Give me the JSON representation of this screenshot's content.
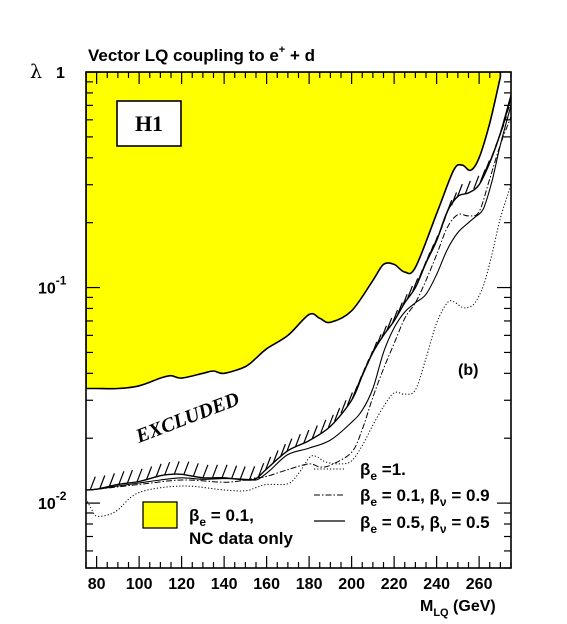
{
  "chart_data": {
    "type": "line",
    "title_text": "Vector LQ coupling to e",
    "title_sup": "+",
    "title_tail": " + d",
    "ylabel": "λ",
    "xlabel_main": "M",
    "xlabel_sub": "LQ",
    "xlabel_unit": " (GeV)",
    "panel_label": "H1",
    "subfig_label": "(b)",
    "region_label": "EXCLUDED",
    "x_ticks": [
      "80",
      "100",
      "120",
      "140",
      "160",
      "180",
      "200",
      "220",
      "240",
      "260"
    ],
    "x_tick_values": [
      80,
      100,
      120,
      140,
      160,
      180,
      200,
      220,
      240,
      260
    ],
    "y_tick_labels": [
      {
        "value": 1,
        "base": "1",
        "exp": ""
      },
      {
        "value": 0.1,
        "base": "10",
        "exp": "-1"
      },
      {
        "value": 0.01,
        "base": "10",
        "exp": "-2"
      }
    ],
    "xlim": [
      75,
      275
    ],
    "ylim": [
      0.005,
      1
    ],
    "y_scale": "log",
    "series": [
      {
        "name_pre": "β",
        "name_sub": "e",
        "name_post": " = 0.1,",
        "name_line2": "NC data only",
        "style": "filled",
        "color": "#ffff00",
        "x": [
          75,
          80,
          90,
          100,
          110,
          115,
          120,
          130,
          135,
          140,
          150,
          155,
          160,
          170,
          180,
          185,
          190,
          200,
          210,
          215,
          220,
          225,
          230,
          240,
          248,
          252,
          256,
          260,
          265,
          270
        ],
        "y": [
          0.034,
          0.034,
          0.034,
          0.035,
          0.038,
          0.039,
          0.038,
          0.04,
          0.041,
          0.04,
          0.043,
          0.047,
          0.052,
          0.06,
          0.075,
          0.072,
          0.069,
          0.078,
          0.108,
          0.128,
          0.128,
          0.118,
          0.124,
          0.22,
          0.35,
          0.37,
          0.35,
          0.4,
          0.58,
          0.95
        ]
      },
      {
        "name_pre": "β",
        "name_sub": "e",
        "name_post": " =1.",
        "style": "dotted",
        "color": "#000000",
        "x": [
          75,
          78,
          80,
          85,
          90,
          100,
          120,
          140,
          150,
          155,
          160,
          170,
          175,
          180,
          183,
          188,
          195,
          200,
          205,
          210,
          215,
          220,
          225,
          230,
          235,
          240,
          245,
          248,
          252,
          255,
          258,
          262,
          266,
          270,
          275
        ],
        "y": [
          0.0105,
          0.0092,
          0.0087,
          0.0088,
          0.0093,
          0.0112,
          0.012,
          0.0115,
          0.0114,
          0.0118,
          0.0122,
          0.0123,
          0.0137,
          0.0162,
          0.0165,
          0.0155,
          0.0152,
          0.0157,
          0.0185,
          0.023,
          0.028,
          0.0325,
          0.032,
          0.0335,
          0.047,
          0.0685,
          0.085,
          0.086,
          0.081,
          0.081,
          0.085,
          0.102,
          0.142,
          0.21,
          0.3
        ]
      },
      {
        "name_pre": "β",
        "name_sub": "e",
        "name_post": " = 0.1, ",
        "name_pre2": "β",
        "name_sub2": "ν",
        "name_post2": " = 0.9",
        "style": "dashdot",
        "color": "#000000",
        "x": [
          75,
          80,
          100,
          120,
          140,
          150,
          155,
          160,
          170,
          180,
          185,
          190,
          200,
          205,
          210,
          215,
          220,
          225,
          230,
          235,
          240,
          245,
          250,
          255,
          260,
          265,
          270,
          275
        ],
        "y": [
          0.0115,
          0.0116,
          0.0122,
          0.0128,
          0.0125,
          0.0128,
          0.0131,
          0.0133,
          0.0143,
          0.0152,
          0.0147,
          0.015,
          0.0172,
          0.022,
          0.031,
          0.042,
          0.055,
          0.072,
          0.085,
          0.108,
          0.142,
          0.19,
          0.218,
          0.215,
          0.225,
          0.32,
          0.46,
          0.62
        ]
      },
      {
        "name_pre": "β",
        "name_sub": "e",
        "name_post": " = 0.5, ",
        "name_pre2": "β",
        "name_sub2": "ν",
        "name_post2": " = 0.5",
        "style": "solid",
        "color": "#000000",
        "x": [
          75,
          80,
          90,
          100,
          110,
          120,
          130,
          140,
          150,
          155,
          158,
          162,
          170,
          180,
          190,
          200,
          205,
          210,
          215,
          220,
          225,
          230,
          235,
          240,
          245,
          250,
          255,
          258,
          262,
          266,
          270,
          275
        ],
        "y": [
          0.0115,
          0.0116,
          0.012,
          0.0124,
          0.0128,
          0.0131,
          0.0129,
          0.013,
          0.0129,
          0.0128,
          0.0133,
          0.0143,
          0.0168,
          0.018,
          0.0196,
          0.0237,
          0.027,
          0.034,
          0.05,
          0.065,
          0.077,
          0.085,
          0.093,
          0.115,
          0.15,
          0.18,
          0.2,
          0.212,
          0.232,
          0.31,
          0.46,
          0.7
        ]
      }
    ],
    "hatched_boundary": {
      "x": [
        75,
        80,
        90,
        100,
        110,
        115,
        120,
        130,
        140,
        150,
        155,
        160,
        170,
        180,
        190,
        200,
        205,
        210,
        215,
        220,
        225,
        230,
        235,
        240,
        245,
        250,
        255,
        260,
        265,
        270,
        275
      ],
      "y": [
        0.0115,
        0.0116,
        0.0122,
        0.0126,
        0.0134,
        0.0136,
        0.0136,
        0.0131,
        0.0131,
        0.0128,
        0.013,
        0.0144,
        0.0175,
        0.0195,
        0.0227,
        0.03,
        0.039,
        0.05,
        0.06,
        0.07,
        0.085,
        0.1,
        0.13,
        0.165,
        0.225,
        0.265,
        0.275,
        0.3,
        0.38,
        0.52,
        0.78
      ]
    }
  }
}
